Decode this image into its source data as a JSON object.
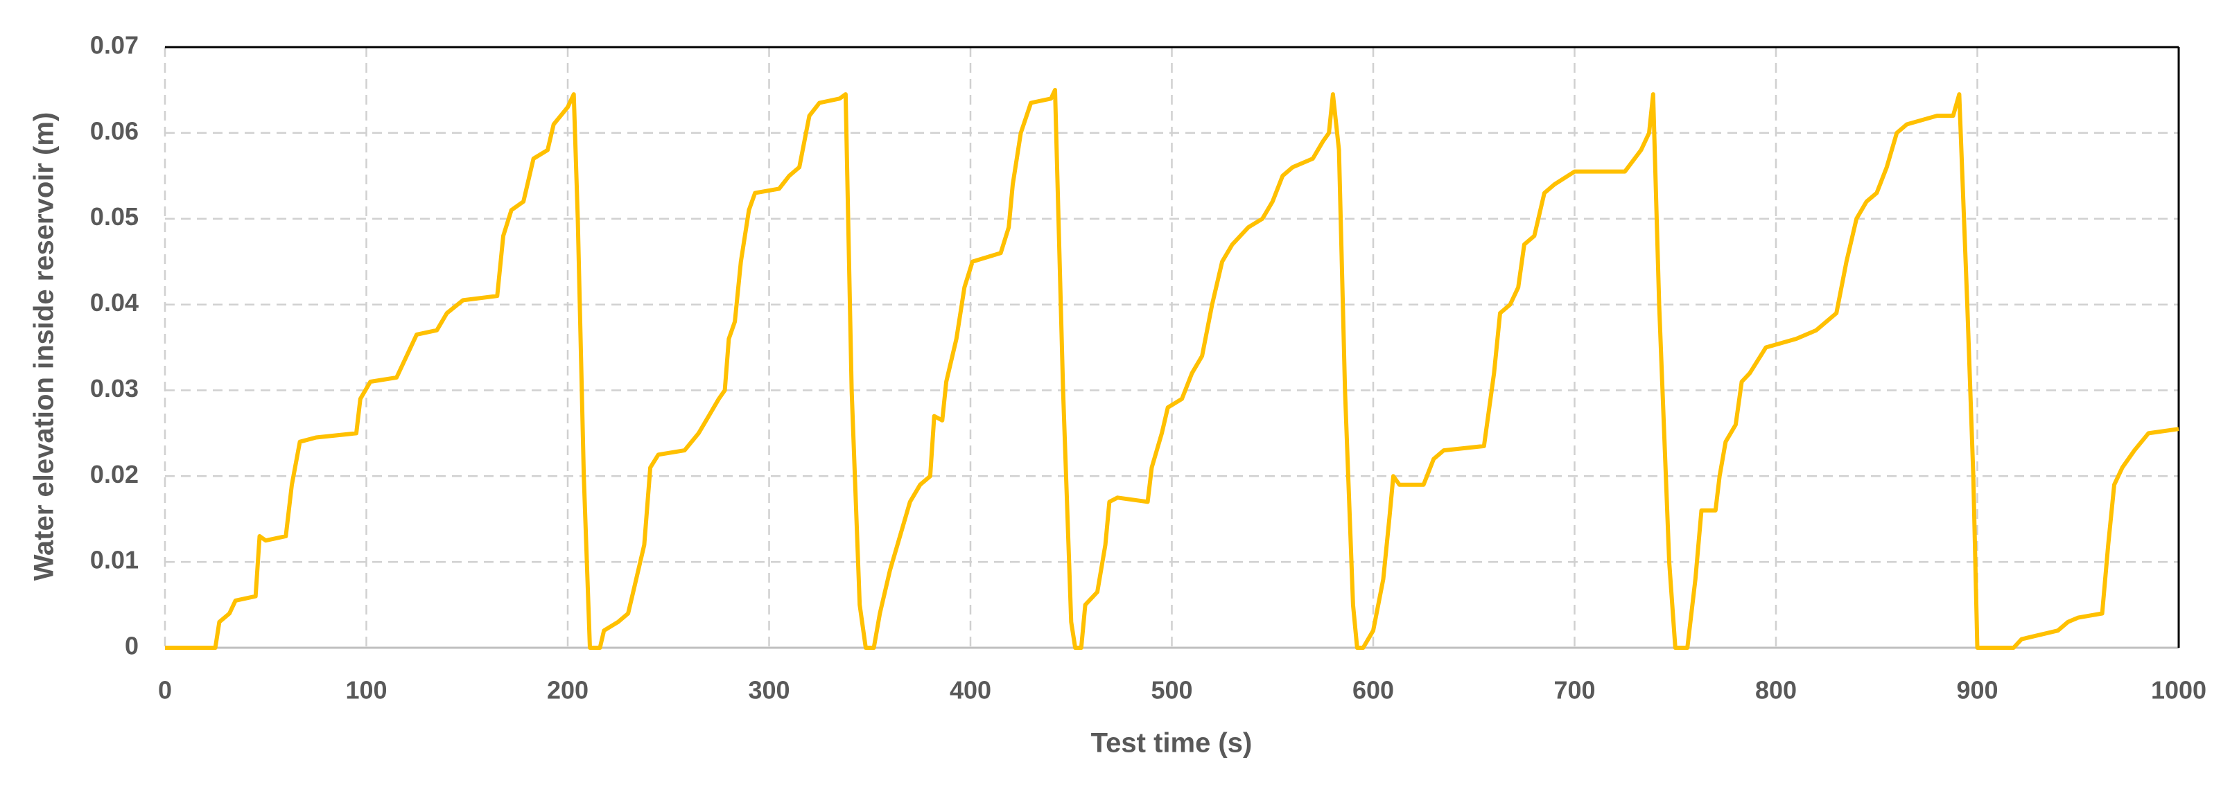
{
  "chart_data": {
    "type": "line",
    "x_label": "Test time (s)",
    "y_label": "Water elevation inside reservoir (m)",
    "xlim": [
      0,
      1000
    ],
    "xticks": [
      0,
      100,
      200,
      300,
      400,
      500,
      600,
      700,
      800,
      900,
      1000
    ],
    "ylim": [
      0,
      0.07
    ],
    "yticks": [
      0,
      0.01,
      0.02,
      0.03,
      0.04,
      0.05,
      0.06,
      0.07
    ],
    "grid": true,
    "series": [
      {
        "color": "#ffc000",
        "x": [
          0,
          25,
          27,
          32,
          35,
          45,
          47,
          50,
          60,
          63,
          67,
          75,
          95,
          97,
          102,
          115,
          120,
          125,
          135,
          140,
          148,
          165,
          168,
          172,
          178,
          183,
          190,
          193,
          200,
          203,
          205,
          208,
          211,
          216,
          218,
          225,
          230,
          233,
          238,
          241,
          245,
          258,
          265,
          270,
          275,
          278,
          280,
          283,
          286,
          290,
          293,
          305,
          310,
          315,
          320,
          325,
          335,
          338,
          341,
          345,
          348,
          352,
          355,
          360,
          365,
          370,
          375,
          380,
          382,
          386,
          388,
          393,
          397,
          401,
          415,
          419,
          421,
          425,
          430,
          440,
          442,
          446,
          450,
          452,
          455,
          457,
          463,
          467,
          469,
          473,
          488,
          490,
          495,
          498,
          505,
          510,
          515,
          520,
          525,
          530,
          538,
          545,
          550,
          555,
          560,
          570,
          575,
          578,
          580,
          583,
          586,
          590,
          592,
          595,
          600,
          605,
          608,
          610,
          613,
          625,
          630,
          635,
          655,
          660,
          663,
          668,
          672,
          675,
          680,
          685,
          690,
          700,
          725,
          733,
          737,
          739,
          742,
          747,
          750,
          756,
          760,
          763,
          770,
          772,
          775,
          780,
          783,
          787,
          795,
          810,
          820,
          830,
          835,
          840,
          845,
          850,
          855,
          860,
          865,
          880,
          888,
          891,
          895,
          898,
          900,
          918,
          922,
          940,
          945,
          950,
          962,
          965,
          968,
          972,
          978,
          985,
          1000
        ],
        "values": [
          0,
          0,
          0.003,
          0.004,
          0.0055,
          0.006,
          0.013,
          0.0125,
          0.013,
          0.019,
          0.024,
          0.0245,
          0.025,
          0.029,
          0.031,
          0.0315,
          0.034,
          0.0365,
          0.037,
          0.039,
          0.0405,
          0.041,
          0.048,
          0.051,
          0.052,
          0.057,
          0.058,
          0.061,
          0.063,
          0.0645,
          0.05,
          0.02,
          0,
          0,
          0.002,
          0.003,
          0.004,
          0.007,
          0.012,
          0.021,
          0.0225,
          0.023,
          0.025,
          0.027,
          0.029,
          0.03,
          0.036,
          0.038,
          0.045,
          0.051,
          0.053,
          0.0535,
          0.055,
          0.056,
          0.062,
          0.0635,
          0.064,
          0.0645,
          0.03,
          0.005,
          0,
          0,
          0.004,
          0.009,
          0.013,
          0.017,
          0.019,
          0.02,
          0.027,
          0.0265,
          0.031,
          0.036,
          0.042,
          0.045,
          0.046,
          0.049,
          0.054,
          0.06,
          0.0635,
          0.064,
          0.065,
          0.03,
          0.003,
          0,
          0,
          0.005,
          0.0065,
          0.012,
          0.017,
          0.0175,
          0.017,
          0.021,
          0.025,
          0.028,
          0.029,
          0.032,
          0.034,
          0.04,
          0.045,
          0.047,
          0.049,
          0.05,
          0.052,
          0.055,
          0.056,
          0.057,
          0.059,
          0.06,
          0.0645,
          0.058,
          0.03,
          0.005,
          0,
          0,
          0.002,
          0.008,
          0.015,
          0.02,
          0.019,
          0.019,
          0.022,
          0.023,
          0.0235,
          0.032,
          0.039,
          0.04,
          0.042,
          0.047,
          0.048,
          0.053,
          0.054,
          0.0555,
          0.0555,
          0.058,
          0.06,
          0.0645,
          0.04,
          0.01,
          0,
          0,
          0.008,
          0.016,
          0.016,
          0.02,
          0.024,
          0.026,
          0.031,
          0.032,
          0.035,
          0.036,
          0.037,
          0.039,
          0.045,
          0.05,
          0.052,
          0.053,
          0.056,
          0.06,
          0.061,
          0.062,
          0.062,
          0.0645,
          0.04,
          0.02,
          0,
          0,
          0.001,
          0.002,
          0.003,
          0.0035,
          0.004,
          0.012,
          0.019,
          0.021,
          0.023,
          0.025,
          0.0255
        ]
      }
    ]
  }
}
